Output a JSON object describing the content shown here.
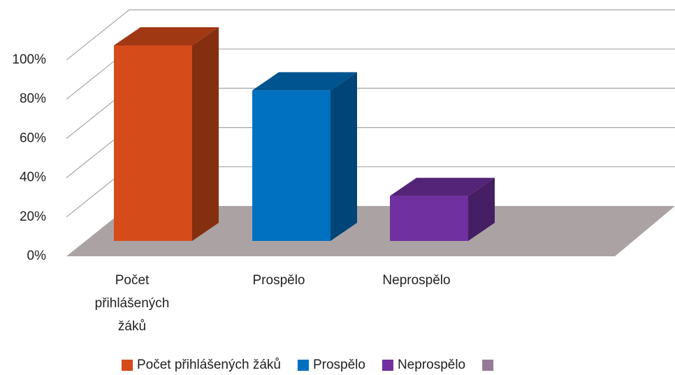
{
  "chart_data": {
    "type": "bar3d",
    "categories": [
      "Počet přihlášených žáků",
      "Prospělo",
      "Neprospělo"
    ],
    "series": [
      {
        "name": "Počet přihlášených žáků",
        "color": "#d54b1a",
        "values": [
          100,
          null,
          null
        ]
      },
      {
        "name": "Prospělo",
        "color": "#0070c0",
        "values": [
          null,
          77,
          null
        ]
      },
      {
        "name": "Neprospělo",
        "color": "#7030a0",
        "values": [
          null,
          null,
          23
        ]
      },
      {
        "name": null,
        "color": "#957a96",
        "values": [
          null,
          null,
          null
        ]
      }
    ],
    "ylim": [
      0,
      100
    ],
    "yticks": [
      {
        "value": 0,
        "label": "0%"
      },
      {
        "value": 20,
        "label": "20%"
      },
      {
        "value": 40,
        "label": "40%"
      },
      {
        "value": 60,
        "label": "60%"
      },
      {
        "value": 80,
        "label": "80%"
      },
      {
        "value": 100,
        "label": "100%"
      }
    ],
    "grid": true,
    "floor_color": "#aba3a3",
    "legend": "bottom"
  }
}
